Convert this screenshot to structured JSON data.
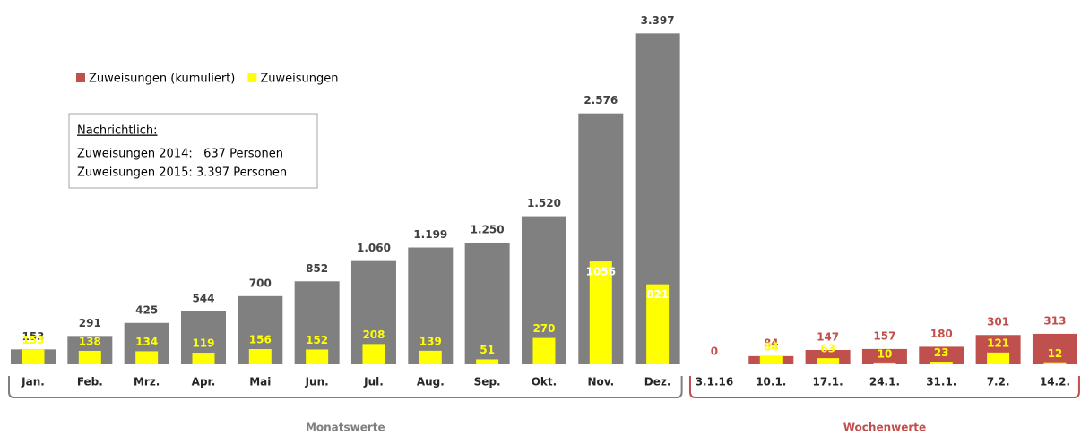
{
  "chart_data": {
    "type": "bar",
    "categories": [
      "Jan.",
      "Feb.",
      "Mrz.",
      "Apr.",
      "Mai",
      "Jun.",
      "Jul.",
      "Aug.",
      "Sep.",
      "Okt.",
      "Nov.",
      "Dez.",
      "3.1.16",
      "10.1.",
      "17.1.",
      "24.1.",
      "31.1.",
      "7.2.",
      "14.2."
    ],
    "series": [
      {
        "name": "Zuweisungen (kumuliert)",
        "color": "#c0504d",
        "bar_colors": [
          "#808080",
          "#808080",
          "#808080",
          "#808080",
          "#808080",
          "#808080",
          "#808080",
          "#808080",
          "#808080",
          "#808080",
          "#808080",
          "#808080",
          "#c0504d",
          "#c0504d",
          "#c0504d",
          "#c0504d",
          "#c0504d",
          "#c0504d",
          "#c0504d"
        ],
        "values": [
          153,
          291,
          425,
          544,
          700,
          852,
          1060,
          1199,
          1250,
          1520,
          2576,
          3397,
          0,
          84,
          147,
          157,
          180,
          301,
          313
        ],
        "value_labels": [
          "153",
          "291",
          "425",
          "544",
          "700",
          "852",
          "1.060",
          "1.199",
          "1.250",
          "1.520",
          "2.576",
          "3.397",
          "0",
          "84",
          "147",
          "157",
          "180",
          "301",
          "313"
        ]
      },
      {
        "name": "Zuweisungen",
        "color": "#ffff00",
        "values": [
          153,
          138,
          134,
          119,
          156,
          152,
          208,
          139,
          51,
          270,
          1056,
          821,
          null,
          84,
          63,
          10,
          23,
          121,
          12
        ]
      }
    ],
    "ylim": [
      0,
      3400
    ],
    "legend": "top-left",
    "groups": [
      {
        "label": "Monatswerte",
        "from": "Jan.",
        "to": "Dez.",
        "color": "#7f7f7f"
      },
      {
        "label": "Wochenwerte",
        "from": "3.1.16",
        "to": "14.2.",
        "color": "#c0504d"
      }
    ],
    "annotation": {
      "title": "Nachrichtlich:",
      "lines": [
        "Zuweisungen 2014:   637 Personen",
        "Zuweisungen 2015: 3.397 Personen"
      ]
    }
  }
}
